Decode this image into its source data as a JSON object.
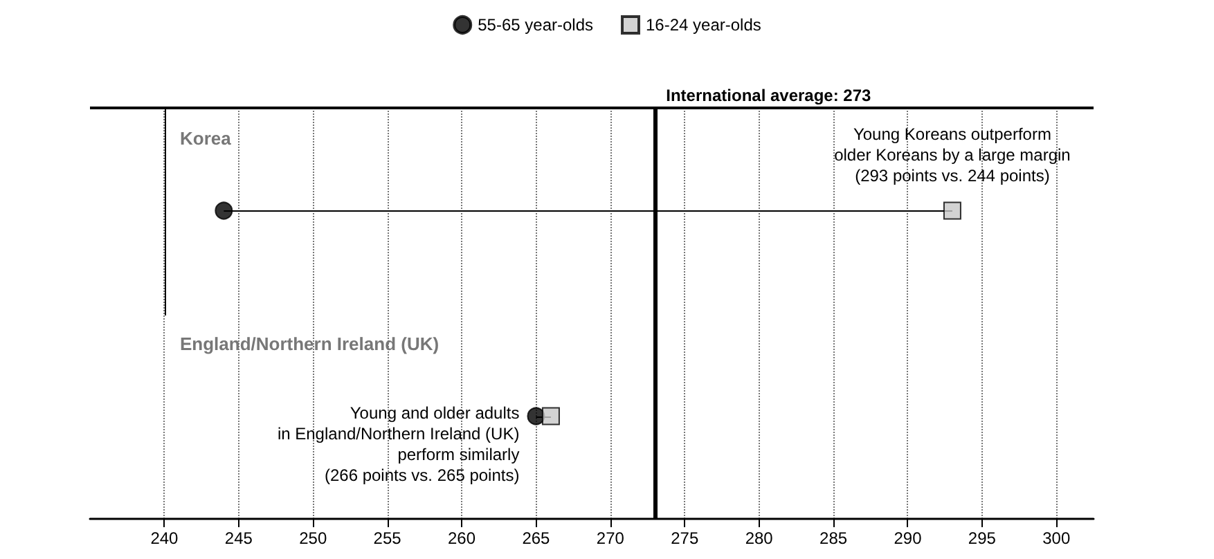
{
  "chart_data": {
    "type": "scatter",
    "orientation": "horizontal",
    "categories": [
      "Korea",
      "England/Northern Ireland (UK)"
    ],
    "series": [
      {
        "name": "55-65 year-olds",
        "color": "#000000",
        "marker": "circle",
        "values": [
          244,
          265
        ]
      },
      {
        "name": "16-24 year-olds",
        "color": "#c8c8c8",
        "marker": "square",
        "values": [
          293,
          266
        ]
      }
    ],
    "xlim": [
      235,
      302.5
    ],
    "xticks": [
      240,
      245,
      250,
      255,
      260,
      265,
      270,
      275,
      280,
      285,
      290,
      295,
      300
    ],
    "grid": "x",
    "legend": "top",
    "ref_lines": [
      {
        "axis": "x",
        "value": 273,
        "label": "International average: 273",
        "color": "#000000"
      }
    ],
    "annotations": [
      {
        "text": "Young Koreans outperform\nolder Koreans by a large margin\n(293 points vs. 244 points)",
        "x": 293,
        "y": "Korea"
      },
      {
        "text": "Young and older adults\nin England/Northern Ireland (UK)\nperform similarly\n(266 points vs. 265 points)",
        "x": 265,
        "y": "England/Northern Ireland (UK)"
      }
    ]
  }
}
